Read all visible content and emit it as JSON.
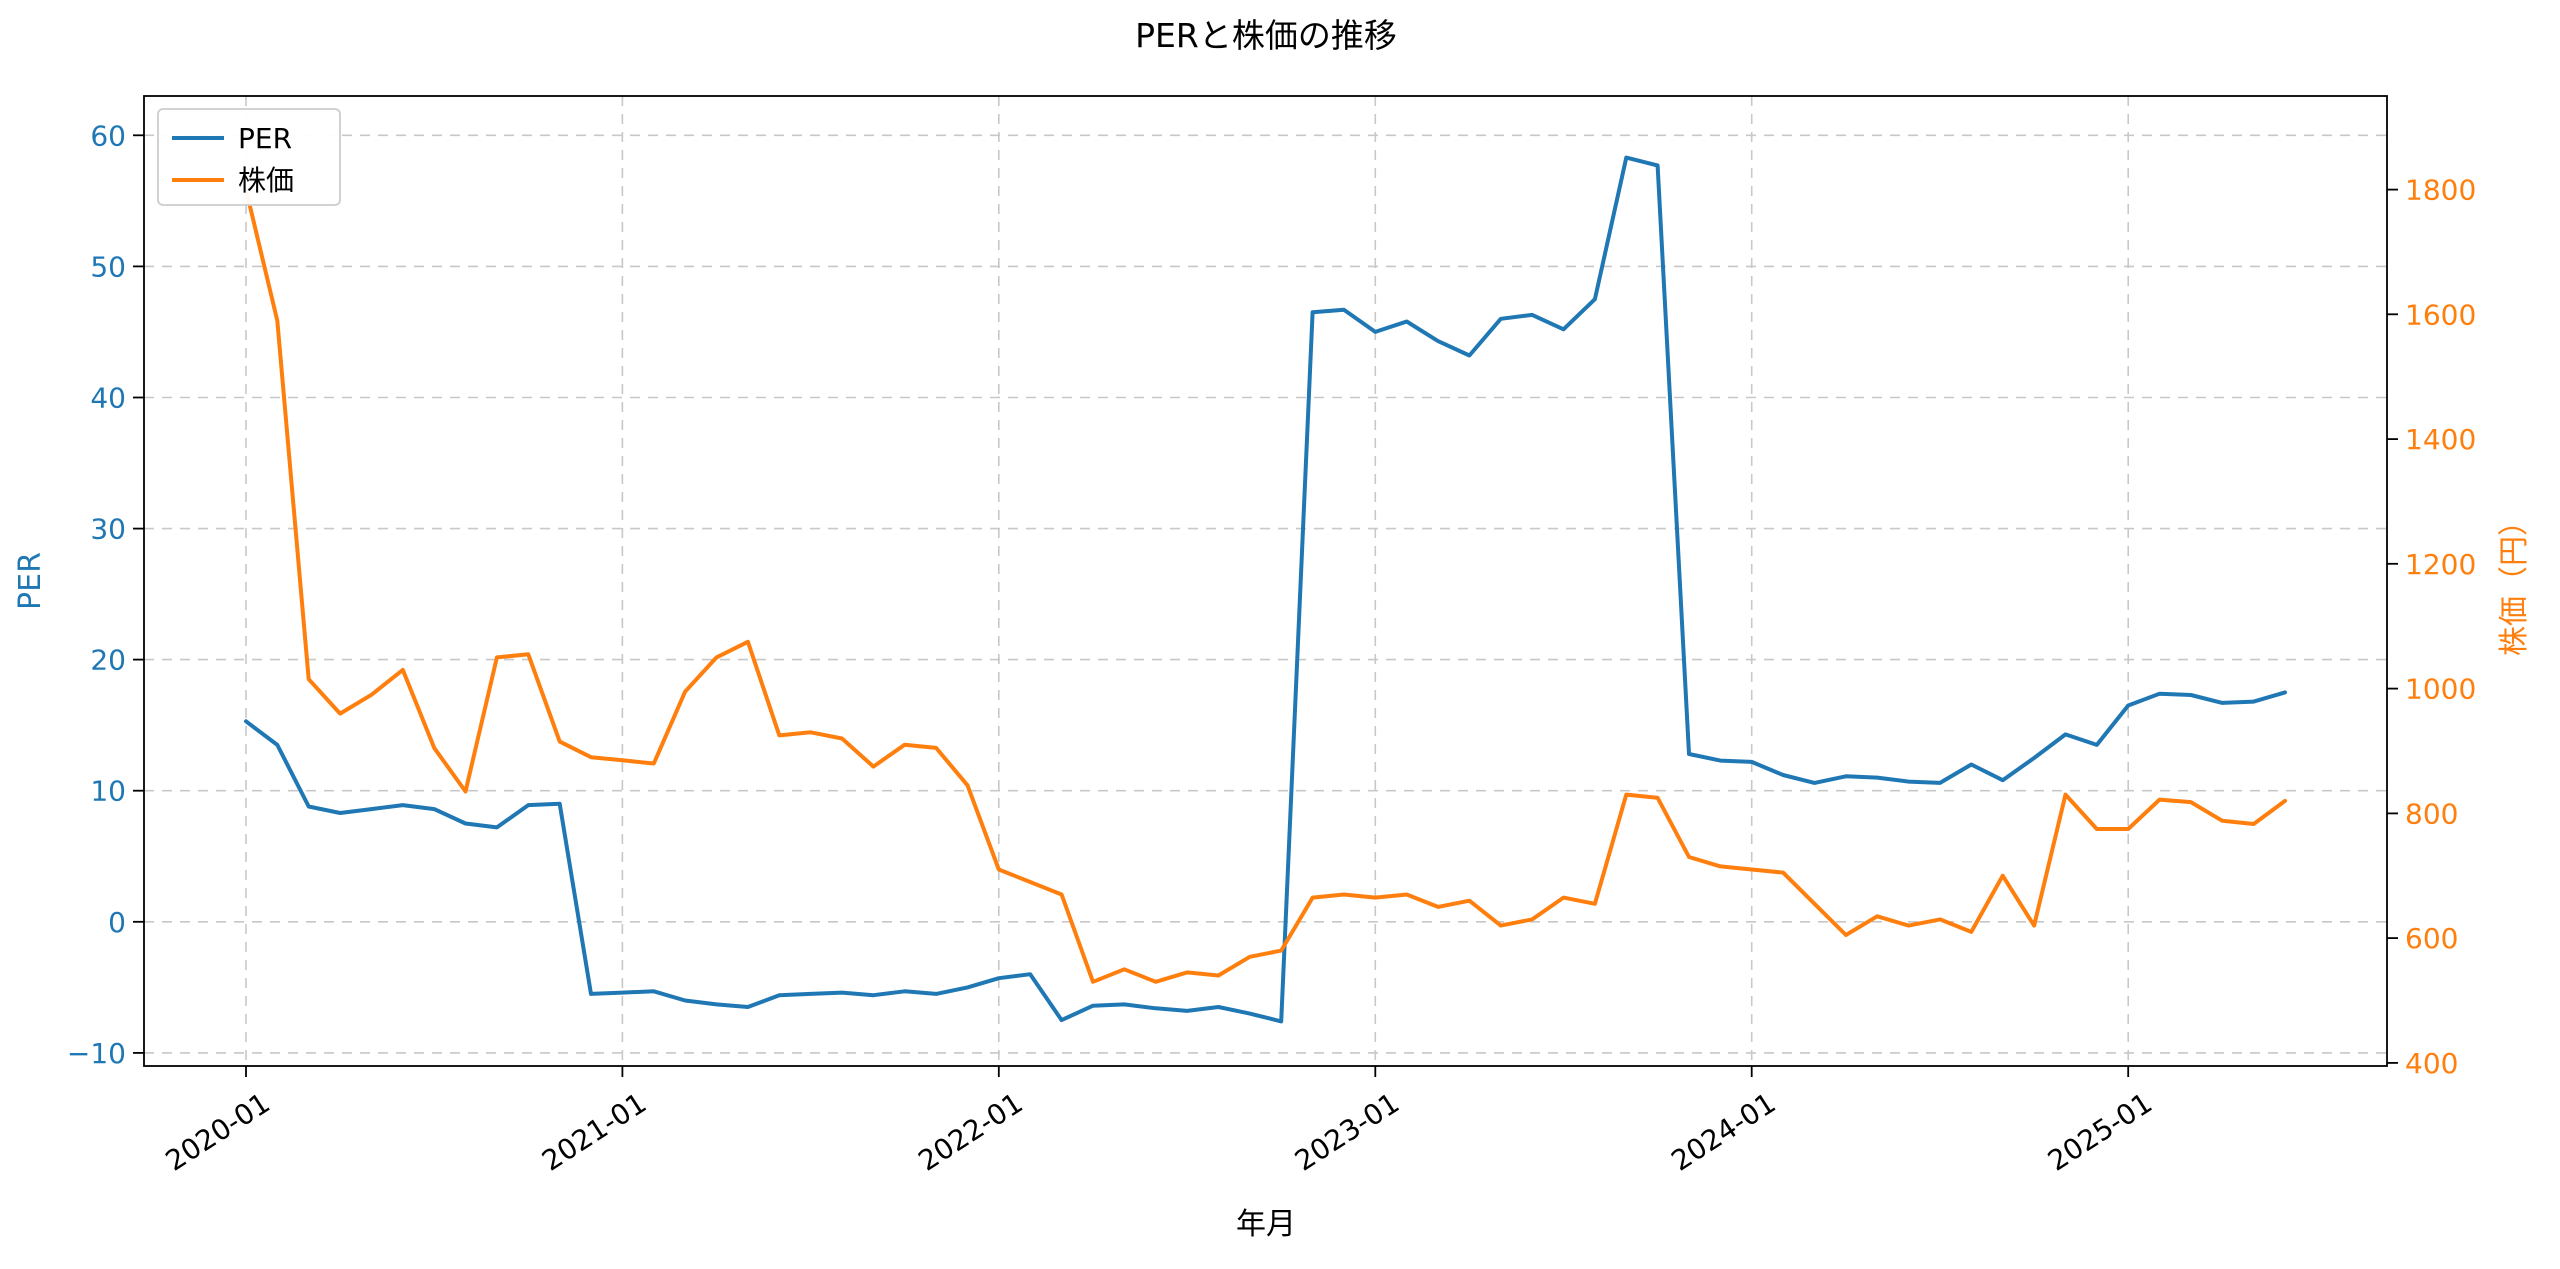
{
  "chart_data": {
    "type": "line",
    "title": "PERと株価の推移",
    "xlabel": "年月",
    "x": [
      "2020-01",
      "2020-02",
      "2020-03",
      "2020-04",
      "2020-05",
      "2020-06",
      "2020-07",
      "2020-08",
      "2020-09",
      "2020-10",
      "2020-11",
      "2020-12",
      "2021-01",
      "2021-02",
      "2021-03",
      "2021-04",
      "2021-05",
      "2021-06",
      "2021-07",
      "2021-08",
      "2021-09",
      "2021-10",
      "2021-11",
      "2021-12",
      "2022-01",
      "2022-02",
      "2022-03",
      "2022-04",
      "2022-05",
      "2022-06",
      "2022-07",
      "2022-08",
      "2022-09",
      "2022-10",
      "2022-11",
      "2022-12",
      "2023-01",
      "2023-02",
      "2023-03",
      "2023-04",
      "2023-05",
      "2023-06",
      "2023-07",
      "2023-08",
      "2023-09",
      "2023-10",
      "2023-11",
      "2023-12",
      "2024-01",
      "2024-02",
      "2024-03",
      "2024-04",
      "2024-05",
      "2024-06",
      "2024-07",
      "2024-08",
      "2024-09",
      "2024-10",
      "2024-11",
      "2024-12",
      "2025-01",
      "2025-02",
      "2025-03",
      "2025-04",
      "2025-05",
      "2025-06"
    ],
    "xlim": [
      -3.25,
      68.25
    ],
    "x_tick_positions": [
      0,
      12,
      24,
      36,
      48,
      60
    ],
    "x_tick_labels": [
      "2020-01",
      "2021-01",
      "2022-01",
      "2023-01",
      "2024-01",
      "2025-01"
    ],
    "axes": {
      "left": {
        "label": "PER",
        "color": "#1f77b4",
        "ticks": [
          -10,
          0,
          10,
          20,
          30,
          40,
          50,
          60
        ],
        "lim": [
          -11,
          63
        ]
      },
      "right": {
        "label": "株価（円）",
        "color": "#ff7f0e",
        "ticks": [
          400,
          600,
          800,
          1000,
          1200,
          1400,
          1600,
          1800
        ],
        "lim": [
          395,
          1950
        ]
      }
    },
    "grid": {
      "on": true,
      "style": "dashed",
      "color": "#c8c8c8"
    },
    "legend": {
      "position": "upper-left",
      "entries": [
        "PER",
        "株価"
      ]
    },
    "series": [
      {
        "name": "PER",
        "axis": "left",
        "color": "#1f77b4",
        "values": [
          15.3,
          13.5,
          8.8,
          8.3,
          8.6,
          8.9,
          8.6,
          7.5,
          7.2,
          8.9,
          9.0,
          -5.5,
          -5.4,
          -5.3,
          -6.0,
          -6.3,
          -6.5,
          -5.6,
          -5.5,
          -5.4,
          -5.6,
          -5.3,
          -5.5,
          -5.0,
          -4.3,
          -4.0,
          -7.5,
          -6.4,
          -6.3,
          -6.6,
          -6.8,
          -6.5,
          -7.0,
          -7.6,
          46.5,
          46.7,
          45.0,
          45.8,
          44.3,
          43.2,
          46.0,
          46.3,
          45.2,
          47.5,
          58.3,
          57.7,
          12.8,
          12.3,
          12.2,
          11.2,
          10.6,
          11.1,
          11.0,
          10.7,
          10.6,
          12.0,
          10.8,
          12.5,
          14.3,
          13.5,
          16.5,
          17.4,
          17.3,
          16.7,
          16.8,
          17.5
        ]
      },
      {
        "name": "株価",
        "axis": "right",
        "color": "#ff7f0e",
        "values": [
          1800,
          1590,
          1015,
          960,
          990,
          1030,
          905,
          835,
          1050,
          1055,
          915,
          890,
          885,
          880,
          995,
          1050,
          1075,
          925,
          930,
          920,
          875,
          910,
          905,
          845,
          710,
          690,
          670,
          530,
          550,
          530,
          545,
          540,
          570,
          580,
          665,
          670,
          665,
          670,
          650,
          660,
          620,
          630,
          665,
          655,
          830,
          825,
          730,
          715,
          710,
          705,
          655,
          605,
          635,
          620,
          630,
          610,
          700,
          620,
          830,
          775,
          775,
          822,
          818,
          788,
          783,
          820
        ]
      }
    ]
  }
}
